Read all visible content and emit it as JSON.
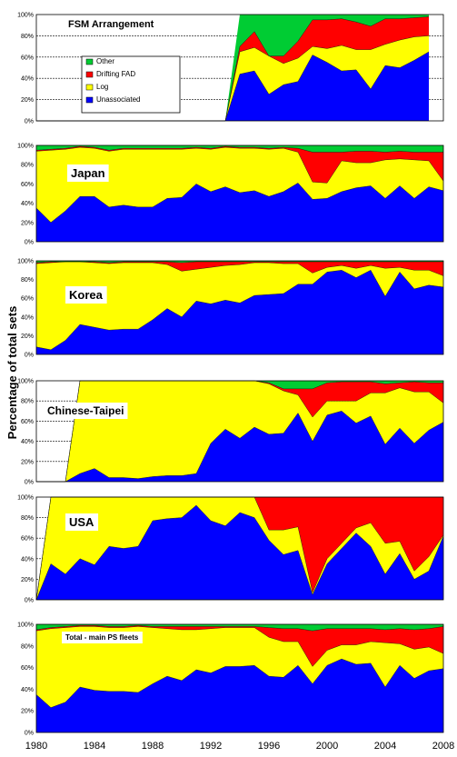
{
  "y_axis_label": "Percentage of total sets",
  "x_ticks": [
    "1980",
    "1984",
    "1988",
    "1992",
    "1996",
    "2000",
    "2004",
    "2008"
  ],
  "y_ticks": [
    "0%",
    "20%",
    "40%",
    "60%",
    "80%",
    "100%"
  ],
  "colors": {
    "Unassociated": "#0000ff",
    "Log": "#ffff00",
    "Drifting FAD": "#ff0000",
    "Other": "#00cc33"
  },
  "legend": [
    "Other",
    "Drifting FAD",
    "Log",
    "Unassociated"
  ],
  "chart_data": [
    {
      "type": "area",
      "title": "FSM Arrangement",
      "stacked": true,
      "ylim": [
        0,
        100
      ],
      "xlim": [
        1980,
        2008
      ],
      "legend_position": "left",
      "x": [
        1980,
        1981,
        1982,
        1983,
        1984,
        1985,
        1986,
        1987,
        1988,
        1989,
        1990,
        1991,
        1992,
        1993,
        1994,
        1995,
        1996,
        1997,
        1998,
        1999,
        2000,
        2001,
        2002,
        2003,
        2004,
        2005,
        2006,
        2007
      ],
      "series": [
        {
          "name": "Unassociated",
          "values": [
            0,
            0,
            0,
            0,
            0,
            0,
            0,
            0,
            0,
            0,
            0,
            0,
            0,
            0,
            44,
            47,
            25,
            34,
            37,
            62,
            55,
            47,
            48,
            30,
            52,
            50,
            57,
            65
          ]
        },
        {
          "name": "Log",
          "values": [
            0,
            0,
            0,
            0,
            0,
            0,
            0,
            0,
            0,
            0,
            0,
            0,
            0,
            0,
            21,
            22,
            36,
            20,
            22,
            8,
            13,
            24,
            19,
            37,
            20,
            26,
            22,
            15
          ]
        },
        {
          "name": "Drifting FAD",
          "values": [
            0,
            0,
            0,
            0,
            0,
            0,
            0,
            0,
            0,
            0,
            0,
            0,
            0,
            0,
            5,
            15,
            0,
            7,
            16,
            25,
            27,
            25,
            26,
            22,
            24,
            20,
            18,
            18
          ]
        },
        {
          "name": "Other",
          "values": [
            0,
            0,
            0,
            0,
            0,
            0,
            0,
            0,
            0,
            0,
            0,
            0,
            0,
            0,
            30,
            16,
            39,
            39,
            25,
            5,
            5,
            4,
            7,
            11,
            4,
            4,
            3,
            2
          ]
        }
      ]
    },
    {
      "type": "area",
      "title": "Japan",
      "stacked": true,
      "ylim": [
        0,
        100
      ],
      "xlim": [
        1980,
        2008
      ],
      "x": [
        1980,
        1981,
        1982,
        1983,
        1984,
        1985,
        1986,
        1987,
        1988,
        1989,
        1990,
        1991,
        1992,
        1993,
        1994,
        1995,
        1996,
        1997,
        1998,
        1999,
        2000,
        2001,
        2002,
        2003,
        2004,
        2005,
        2006,
        2007,
        2008
      ],
      "series": [
        {
          "name": "Unassociated",
          "values": [
            35,
            20,
            32,
            47,
            47,
            36,
            38,
            36,
            36,
            45,
            46,
            60,
            52,
            57,
            51,
            53,
            47,
            52,
            61,
            44,
            45,
            52,
            56,
            58,
            45,
            58,
            45,
            57,
            53
          ]
        },
        {
          "name": "Log",
          "values": [
            59,
            75,
            64,
            51,
            50,
            58,
            58,
            60,
            60,
            51,
            50,
            37,
            44,
            41,
            46,
            44,
            49,
            45,
            32,
            18,
            16,
            32,
            26,
            24,
            40,
            28,
            40,
            27,
            10
          ]
        },
        {
          "name": "Drifting FAD",
          "values": [
            1,
            1,
            1,
            1,
            1,
            1,
            1,
            1,
            1,
            1,
            1,
            1,
            1,
            1,
            1,
            1,
            1,
            1,
            4,
            31,
            32,
            9,
            12,
            12,
            8,
            8,
            8,
            9,
            30
          ]
        },
        {
          "name": "Other",
          "values": [
            5,
            4,
            3,
            1,
            2,
            5,
            3,
            3,
            3,
            3,
            3,
            2,
            3,
            1,
            2,
            2,
            3,
            2,
            3,
            7,
            7,
            7,
            6,
            6,
            7,
            6,
            7,
            7,
            7
          ]
        }
      ]
    },
    {
      "type": "area",
      "title": "Korea",
      "stacked": true,
      "ylim": [
        0,
        100
      ],
      "xlim": [
        1980,
        2008
      ],
      "x": [
        1980,
        1981,
        1982,
        1983,
        1984,
        1985,
        1986,
        1987,
        1988,
        1989,
        1990,
        1991,
        1992,
        1993,
        1994,
        1995,
        1996,
        1997,
        1998,
        1999,
        2000,
        2001,
        2002,
        2003,
        2004,
        2005,
        2006,
        2007,
        2008
      ],
      "series": [
        {
          "name": "Unassociated",
          "values": [
            8,
            5,
            15,
            32,
            29,
            26,
            27,
            27,
            37,
            49,
            40,
            57,
            54,
            58,
            55,
            63,
            64,
            65,
            75,
            75,
            88,
            90,
            82,
            90,
            62,
            88,
            70,
            74,
            72
          ]
        },
        {
          "name": "Log",
          "values": [
            89,
            93,
            84,
            67,
            69,
            71,
            71,
            71,
            61,
            47,
            49,
            34,
            39,
            37,
            41,
            35,
            34,
            32,
            22,
            12,
            5,
            5,
            10,
            5,
            30,
            5,
            20,
            16,
            12
          ]
        },
        {
          "name": "Drifting FAD",
          "values": [
            1,
            1,
            0,
            0,
            1,
            1,
            1,
            1,
            1,
            3,
            9,
            8,
            6,
            4,
            3,
            1,
            1,
            2,
            2,
            12,
            6,
            4,
            7,
            4,
            7,
            6,
            9,
            9,
            15
          ]
        },
        {
          "name": "Other",
          "values": [
            2,
            1,
            1,
            1,
            1,
            2,
            1,
            1,
            1,
            1,
            2,
            1,
            1,
            1,
            1,
            1,
            1,
            1,
            1,
            1,
            1,
            1,
            1,
            1,
            1,
            1,
            1,
            1,
            1
          ]
        }
      ]
    },
    {
      "type": "area",
      "title": "Chinese-Taipei",
      "stacked": true,
      "ylim": [
        0,
        100
      ],
      "xlim": [
        1980,
        2008
      ],
      "x": [
        1980,
        1981,
        1982,
        1983,
        1984,
        1985,
        1986,
        1987,
        1988,
        1989,
        1990,
        1991,
        1992,
        1993,
        1994,
        1995,
        1996,
        1997,
        1998,
        1999,
        2000,
        2001,
        2002,
        2003,
        2004,
        2005,
        2006,
        2007,
        2008
      ],
      "series": [
        {
          "name": "Unassociated",
          "values": [
            0,
            0,
            0,
            8,
            13,
            4,
            4,
            3,
            5,
            6,
            6,
            8,
            38,
            52,
            43,
            54,
            47,
            48,
            68,
            40,
            66,
            70,
            58,
            65,
            37,
            53,
            38,
            51,
            59
          ]
        },
        {
          "name": "Log",
          "values": [
            0,
            0,
            0,
            92,
            87,
            96,
            96,
            97,
            95,
            94,
            94,
            92,
            62,
            48,
            57,
            46,
            50,
            42,
            18,
            24,
            14,
            10,
            22,
            23,
            51,
            40,
            51,
            38,
            19
          ]
        },
        {
          "name": "Drifting FAD",
          "values": [
            0,
            0,
            0,
            0,
            0,
            0,
            0,
            0,
            0,
            0,
            0,
            0,
            0,
            0,
            0,
            0,
            1,
            2,
            6,
            28,
            18,
            19,
            19,
            11,
            9,
            5,
            10,
            9,
            20
          ]
        },
        {
          "name": "Other",
          "values": [
            0,
            0,
            0,
            0,
            0,
            0,
            0,
            0,
            0,
            0,
            0,
            0,
            0,
            0,
            0,
            0,
            2,
            8,
            8,
            8,
            2,
            1,
            1,
            1,
            3,
            2,
            1,
            2,
            2
          ]
        }
      ]
    },
    {
      "type": "area",
      "title": "USA",
      "stacked": true,
      "ylim": [
        0,
        100
      ],
      "xlim": [
        1980,
        2008
      ],
      "x": [
        1980,
        1981,
        1982,
        1983,
        1984,
        1985,
        1986,
        1987,
        1988,
        1989,
        1990,
        1991,
        1992,
        1993,
        1994,
        1995,
        1996,
        1997,
        1998,
        1999,
        2000,
        2001,
        2002,
        2003,
        2004,
        2005,
        2006,
        2007,
        2008
      ],
      "series": [
        {
          "name": "Unassociated",
          "values": [
            0,
            35,
            25,
            40,
            34,
            52,
            50,
            52,
            77,
            79,
            80,
            92,
            77,
            72,
            85,
            80,
            58,
            44,
            48,
            5,
            35,
            50,
            65,
            52,
            25,
            45,
            20,
            28,
            62
          ]
        },
        {
          "name": "Log",
          "values": [
            0,
            65,
            75,
            60,
            66,
            48,
            50,
            48,
            23,
            21,
            20,
            8,
            23,
            28,
            15,
            20,
            10,
            24,
            23,
            2,
            5,
            5,
            5,
            23,
            30,
            12,
            8,
            14,
            1
          ]
        },
        {
          "name": "Drifting FAD",
          "values": [
            0,
            0,
            0,
            0,
            0,
            0,
            0,
            0,
            0,
            0,
            0,
            0,
            0,
            0,
            0,
            0,
            32,
            32,
            29,
            93,
            60,
            45,
            30,
            25,
            45,
            43,
            72,
            58,
            37
          ]
        },
        {
          "name": "Other",
          "values": [
            0,
            0,
            0,
            0,
            0,
            0,
            0,
            0,
            0,
            0,
            0,
            0,
            0,
            0,
            0,
            0,
            0,
            0,
            0,
            0,
            0,
            0,
            0,
            0,
            0,
            0,
            0,
            0,
            0
          ]
        }
      ]
    },
    {
      "type": "area",
      "title": "Total - main PS fleets",
      "stacked": true,
      "ylim": [
        0,
        100
      ],
      "xlim": [
        1980,
        2008
      ],
      "x": [
        1980,
        1981,
        1982,
        1983,
        1984,
        1985,
        1986,
        1987,
        1988,
        1989,
        1990,
        1991,
        1992,
        1993,
        1994,
        1995,
        1996,
        1997,
        1998,
        1999,
        2000,
        2001,
        2002,
        2003,
        2004,
        2005,
        2006,
        2007,
        2008
      ],
      "series": [
        {
          "name": "Unassociated",
          "values": [
            35,
            23,
            28,
            42,
            39,
            38,
            38,
            37,
            45,
            52,
            48,
            58,
            55,
            61,
            61,
            62,
            52,
            51,
            62,
            45,
            62,
            68,
            63,
            64,
            42,
            62,
            50,
            57,
            59
          ]
        },
        {
          "name": "Log",
          "values": [
            59,
            73,
            69,
            56,
            59,
            59,
            59,
            61,
            52,
            44,
            47,
            37,
            41,
            36,
            36,
            35,
            36,
            33,
            22,
            16,
            14,
            13,
            18,
            20,
            41,
            20,
            27,
            22,
            14
          ]
        },
        {
          "name": "Drifting FAD",
          "values": [
            1,
            1,
            1,
            1,
            1,
            1,
            1,
            1,
            1,
            2,
            3,
            3,
            2,
            1,
            1,
            1,
            9,
            12,
            12,
            33,
            20,
            15,
            15,
            12,
            12,
            14,
            18,
            17,
            25
          ]
        },
        {
          "name": "Other",
          "values": [
            5,
            3,
            2,
            1,
            1,
            2,
            2,
            1,
            2,
            2,
            2,
            2,
            2,
            2,
            2,
            2,
            3,
            4,
            4,
            6,
            4,
            4,
            4,
            4,
            5,
            4,
            5,
            4,
            2
          ]
        }
      ]
    }
  ]
}
